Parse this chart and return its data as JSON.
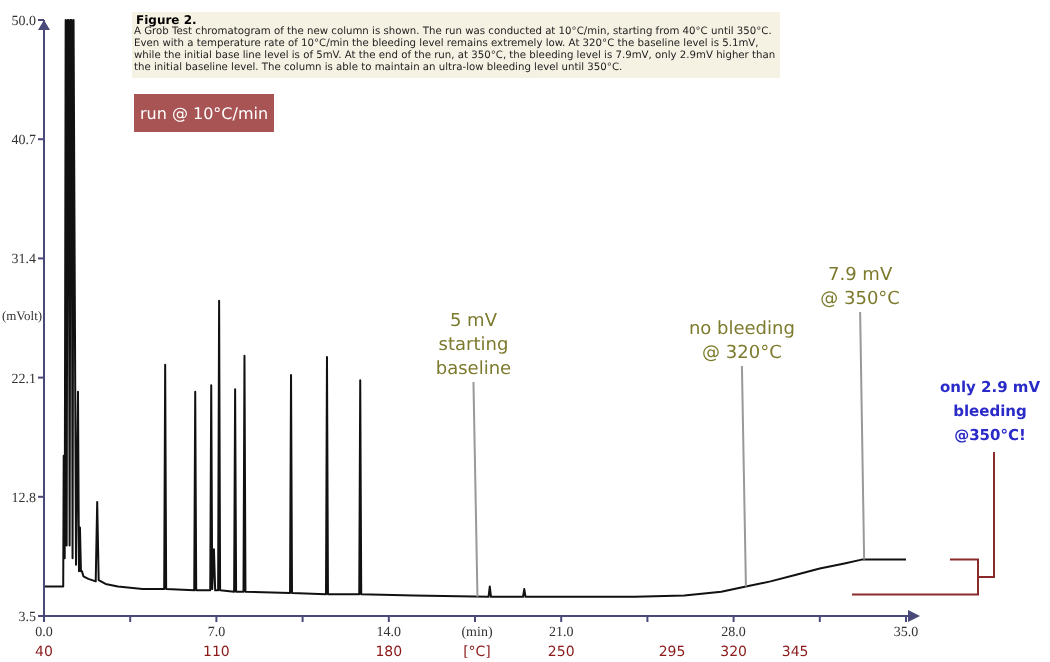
{
  "chart_data": {
    "type": "line",
    "title": "Figure 2.",
    "subtitle": "A Grob Test chromatogram of the new column is shown. The run was conducted at 10°C/min, starting from 40°C until 350°C. Even with a temperature rate of 10°C/min the bleeding level remains extremely low. At 320°C the baseline level is 5.1mV, while the initial base line level is of 5mV. At the end of the run, at 350°C, the bleeding level is 7.9mV, only 2.9mV higher than the initial baseline level. The column is able to maintain an ultra-low bleeding level until 350°C.",
    "xlabel": "(min)",
    "ylabel": "(mVolt)",
    "x2label": "[°C]",
    "xlim": [
      0,
      35
    ],
    "xticks": [
      {
        "value": 0,
        "label": "0.0"
      },
      {
        "value": 3.5,
        "label": null
      },
      {
        "value": 7,
        "label": "7.0"
      },
      {
        "value": 10.5,
        "label": null
      },
      {
        "value": 14,
        "label": "14.0"
      },
      {
        "value": 17.5,
        "label": null
      },
      {
        "value": 21,
        "label": "21.0"
      },
      {
        "value": 24.5,
        "label": null
      },
      {
        "value": 28,
        "label": "28.0"
      },
      {
        "value": 31.5,
        "label": null
      },
      {
        "value": 35,
        "label": "35.0"
      }
    ],
    "x2lim": [
      40,
      390
    ],
    "x2ticks": [
      40,
      110,
      180,
      250,
      295,
      320,
      345
    ],
    "ylim": [
      3.5,
      50
    ],
    "yticks": [
      3.5,
      12.8,
      22.1,
      31.4,
      40.7,
      {
        "value": 50,
        "label": "50.0"
      }
    ],
    "grid": false,
    "marker": "none",
    "line_style": "solid",
    "series": [
      {
        "color": "#111111",
        "x": [
          0,
          0.78,
          0.8,
          0.84,
          0.88,
          0.92,
          0.96,
          1.0,
          1.04,
          1.08,
          1.12,
          1.16,
          1.2,
          1.3,
          1.38,
          1.42,
          1.46,
          1.5,
          1.54,
          1.6,
          1.8,
          2.1,
          2.16,
          2.22,
          2.5,
          3,
          4,
          4.88,
          4.92,
          4.96,
          6.1,
          6.14,
          6.18,
          6.75,
          6.79,
          6.83,
          6.9,
          6.95,
          7.07,
          7.11,
          7.15,
          7.72,
          7.76,
          7.8,
          8.1,
          8.14,
          8.18,
          9.99,
          10.03,
          10.07,
          11.45,
          11.49,
          11.53,
          12.8,
          12.84,
          12.88,
          15,
          18.05,
          18.1,
          18.15,
          19.45,
          19.5,
          19.55,
          22,
          24,
          26,
          27.5,
          28.5,
          29.5,
          30.5,
          31.5,
          32.5,
          33.2,
          34,
          35
        ],
        "values": [
          5.8,
          5.8,
          16,
          8,
          50,
          9,
          50,
          50,
          9,
          50,
          50,
          8,
          50,
          7.5,
          21,
          7,
          10.4,
          7,
          7,
          6.6,
          6.4,
          6.2,
          12.4,
          6.3,
          6,
          5.8,
          5.6,
          5.6,
          23.1,
          5.6,
          5.5,
          21,
          5.5,
          5.5,
          21.5,
          5.6,
          8.7,
          5.5,
          5.5,
          28.1,
          5.5,
          5.4,
          21.2,
          5.4,
          5.4,
          23.8,
          5.4,
          5.3,
          22.3,
          5.3,
          5.2,
          23.7,
          5.2,
          5.2,
          21.9,
          5.2,
          5.1,
          5.0,
          5.8,
          5.0,
          5.0,
          5.6,
          5.0,
          5.0,
          5.0,
          5.1,
          5.4,
          5.8,
          6.2,
          6.7,
          7.2,
          7.6,
          7.9,
          7.9,
          7.9
        ]
      }
    ],
    "annotations": [
      "run @ 10°C/min",
      {
        "text": "5 mV\nstarting\nbaseline",
        "x": 17.6,
        "y": 5.0
      },
      {
        "text": "no bleeding\n@ 320°C",
        "x": 28.5,
        "y": 5.8
      },
      {
        "text": "7.9 mV\n@ 350°C",
        "x": 33.3,
        "y": 7.9
      },
      "only 2.9 mV\nbleeding\n@350°C!"
    ]
  }
}
